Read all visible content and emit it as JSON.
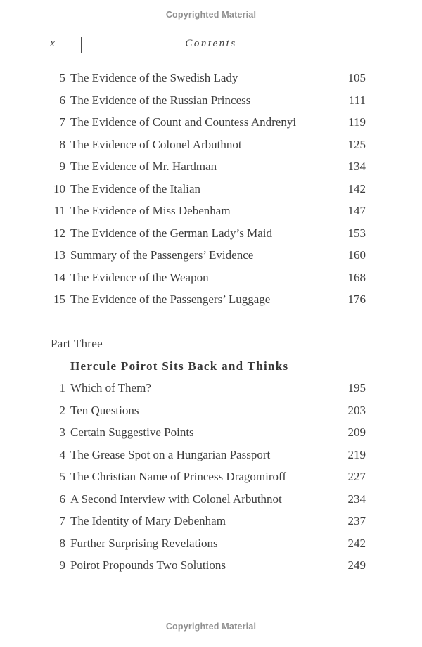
{
  "notices": {
    "top": "Copyrighted Material",
    "bottom": "Copyrighted Material"
  },
  "header": {
    "folio": "x",
    "title": "Contents"
  },
  "sections": [
    {
      "entries": [
        {
          "num": "5",
          "title": "The Evidence of the Swedish Lady",
          "page": "105"
        },
        {
          "num": "6",
          "title": "The Evidence of the Russian Princess",
          "page": "111"
        },
        {
          "num": "7",
          "title": "The Evidence of Count and Countess Andrenyi",
          "page": "119"
        },
        {
          "num": "8",
          "title": "The Evidence of Colonel Arbuthnot",
          "page": "125"
        },
        {
          "num": "9",
          "title": "The Evidence of Mr. Hardman",
          "page": "134"
        },
        {
          "num": "10",
          "title": "The Evidence of the Italian",
          "page": "142"
        },
        {
          "num": "11",
          "title": "The Evidence of Miss Debenham",
          "page": "147"
        },
        {
          "num": "12",
          "title": "The Evidence of the German Lady’s Maid",
          "page": "153"
        },
        {
          "num": "13",
          "title": "Summary of the Passengers’ Evidence",
          "page": "160"
        },
        {
          "num": "14",
          "title": "The Evidence of the Weapon",
          "page": "168"
        },
        {
          "num": "15",
          "title": "The Evidence of the Passengers’ Luggage",
          "page": "176"
        }
      ]
    },
    {
      "part_label": "Part Three",
      "part_title": "Hercule Poirot Sits Back and Thinks",
      "entries": [
        {
          "num": "1",
          "title": "Which of Them?",
          "page": "195"
        },
        {
          "num": "2",
          "title": "Ten Questions",
          "page": "203"
        },
        {
          "num": "3",
          "title": "Certain Suggestive Points",
          "page": "209"
        },
        {
          "num": "4",
          "title": "The Grease Spot on a Hungarian Passport",
          "page": "219"
        },
        {
          "num": "5",
          "title": "The Christian Name of Princess Dragomiroff",
          "page": "227"
        },
        {
          "num": "6",
          "title": "A Second Interview with Colonel Arbuthnot",
          "page": "234"
        },
        {
          "num": "7",
          "title": "The Identity of Mary Debenham",
          "page": "237"
        },
        {
          "num": "8",
          "title": "Further Surprising Revelations",
          "page": "242"
        },
        {
          "num": "9",
          "title": "Poirot Propounds Two Solutions",
          "page": "249"
        }
      ]
    }
  ]
}
